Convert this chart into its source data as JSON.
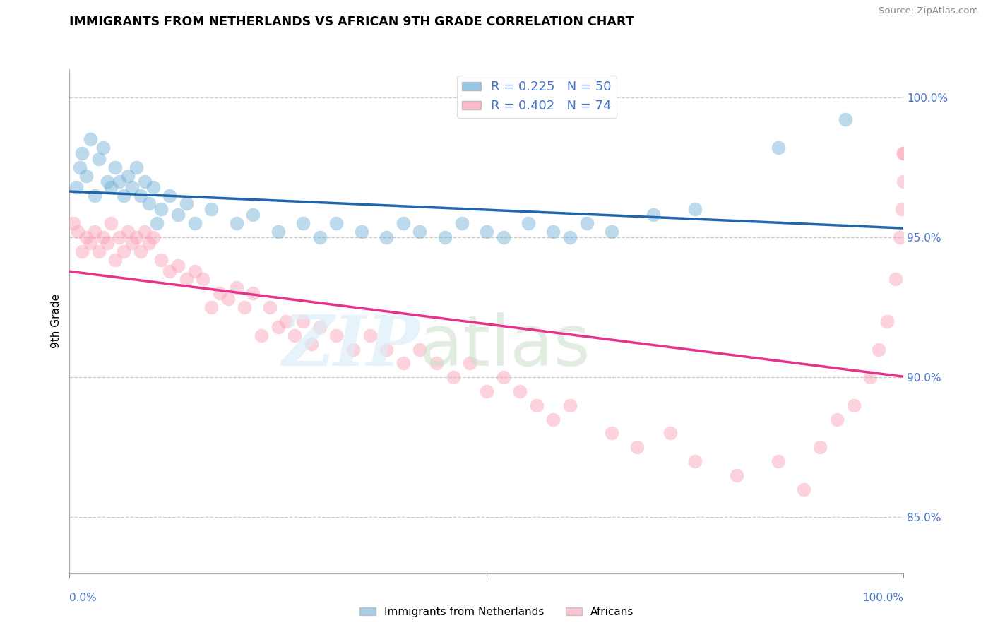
{
  "title": "IMMIGRANTS FROM NETHERLANDS VS AFRICAN 9TH GRADE CORRELATION CHART",
  "source": "Source: ZipAtlas.com",
  "ylabel": "9th Grade",
  "right_yticks": [
    85.0,
    90.0,
    95.0,
    100.0
  ],
  "blue_R": 0.225,
  "blue_N": 50,
  "pink_R": 0.402,
  "pink_N": 74,
  "blue_color": "#6baed6",
  "pink_color": "#fa9fb5",
  "blue_line_color": "#2166ac",
  "pink_line_color": "#e8318a",
  "legend_label_blue": "Immigrants from Netherlands",
  "legend_label_pink": "Africans",
  "blue_points_x": [
    0.8,
    1.2,
    1.5,
    2.0,
    2.5,
    3.0,
    3.5,
    4.0,
    4.5,
    5.0,
    5.5,
    6.0,
    6.5,
    7.0,
    7.5,
    8.0,
    8.5,
    9.0,
    9.5,
    10.0,
    10.5,
    11.0,
    12.0,
    13.0,
    14.0,
    15.0,
    17.0,
    20.0,
    22.0,
    25.0,
    28.0,
    30.0,
    32.0,
    35.0,
    38.0,
    40.0,
    42.0,
    45.0,
    47.0,
    50.0,
    52.0,
    55.0,
    58.0,
    60.0,
    62.0,
    65.0,
    70.0,
    75.0,
    85.0,
    93.0
  ],
  "blue_points_y": [
    96.8,
    97.5,
    98.0,
    97.2,
    98.5,
    96.5,
    97.8,
    98.2,
    97.0,
    96.8,
    97.5,
    97.0,
    96.5,
    97.2,
    96.8,
    97.5,
    96.5,
    97.0,
    96.2,
    96.8,
    95.5,
    96.0,
    96.5,
    95.8,
    96.2,
    95.5,
    96.0,
    95.5,
    95.8,
    95.2,
    95.5,
    95.0,
    95.5,
    95.2,
    95.0,
    95.5,
    95.2,
    95.0,
    95.5,
    95.2,
    95.0,
    95.5,
    95.2,
    95.0,
    95.5,
    95.2,
    95.8,
    96.0,
    98.2,
    99.2
  ],
  "pink_points_x": [
    0.5,
    1.0,
    1.5,
    2.0,
    2.5,
    3.0,
    3.5,
    4.0,
    4.5,
    5.0,
    5.5,
    6.0,
    6.5,
    7.0,
    7.5,
    8.0,
    8.5,
    9.0,
    9.5,
    10.0,
    11.0,
    12.0,
    13.0,
    14.0,
    15.0,
    16.0,
    17.0,
    18.0,
    19.0,
    20.0,
    21.0,
    22.0,
    23.0,
    24.0,
    25.0,
    26.0,
    27.0,
    28.0,
    29.0,
    30.0,
    32.0,
    34.0,
    36.0,
    38.0,
    40.0,
    42.0,
    44.0,
    46.0,
    48.0,
    50.0,
    52.0,
    54.0,
    56.0,
    58.0,
    60.0,
    65.0,
    68.0,
    72.0,
    75.0,
    80.0,
    85.0,
    88.0,
    90.0,
    92.0,
    94.0,
    96.0,
    97.0,
    98.0,
    99.0,
    99.5,
    99.8,
    100.0,
    100.0,
    100.0
  ],
  "pink_points_y": [
    95.5,
    95.2,
    94.5,
    95.0,
    94.8,
    95.2,
    94.5,
    95.0,
    94.8,
    95.5,
    94.2,
    95.0,
    94.5,
    95.2,
    94.8,
    95.0,
    94.5,
    95.2,
    94.8,
    95.0,
    94.2,
    93.8,
    94.0,
    93.5,
    93.8,
    93.5,
    92.5,
    93.0,
    92.8,
    93.2,
    92.5,
    93.0,
    91.5,
    92.5,
    91.8,
    92.0,
    91.5,
    92.0,
    91.2,
    91.8,
    91.5,
    91.0,
    91.5,
    91.0,
    90.5,
    91.0,
    90.5,
    90.0,
    90.5,
    89.5,
    90.0,
    89.5,
    89.0,
    88.5,
    89.0,
    88.0,
    87.5,
    88.0,
    87.0,
    86.5,
    87.0,
    86.0,
    87.5,
    88.5,
    89.0,
    90.0,
    91.0,
    92.0,
    93.5,
    95.0,
    96.0,
    97.0,
    98.0,
    98.0
  ],
  "grid_color": "#cccccc",
  "xlim": [
    0,
    100
  ],
  "ylim": [
    83,
    101
  ],
  "stat_text_color": "#4472c4"
}
